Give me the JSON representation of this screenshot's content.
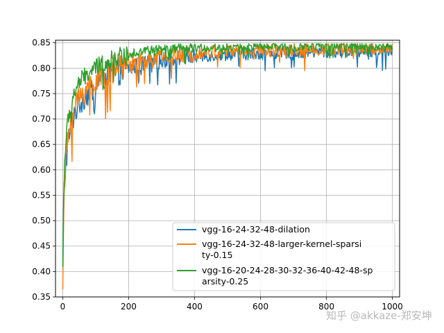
{
  "chart_data": {
    "type": "line",
    "title": "",
    "xlabel": "",
    "ylabel": "",
    "xlim": [
      -22,
      1022
    ],
    "ylim": [
      0.35,
      0.855
    ],
    "x_ticks": [
      0,
      200,
      400,
      600,
      800,
      1000
    ],
    "x_tick_labels": [
      "0",
      "200",
      "400",
      "600",
      "800",
      "1000"
    ],
    "y_ticks": [
      0.35,
      0.4,
      0.45,
      0.5,
      0.55,
      0.6,
      0.65,
      0.7,
      0.75,
      0.8,
      0.85
    ],
    "y_tick_labels": [
      "0.35",
      "0.40",
      "0.45",
      "0.50",
      "0.55",
      "0.60",
      "0.65",
      "0.70",
      "0.75",
      "0.80",
      "0.85"
    ],
    "grid": true,
    "legend_position": "lower-right",
    "series": [
      {
        "name": "vgg-16-24-32-48-dilation",
        "color": "#1f77b4",
        "x": [
          0,
          3,
          6,
          10,
          15,
          20,
          25,
          30,
          40,
          50,
          60,
          70,
          80,
          90,
          100,
          120,
          140,
          160,
          180,
          200,
          250,
          300,
          350,
          400,
          450,
          500,
          600,
          700,
          800,
          900,
          1000
        ],
        "y": [
          0.42,
          0.55,
          0.58,
          0.62,
          0.65,
          0.67,
          0.68,
          0.7,
          0.72,
          0.73,
          0.74,
          0.75,
          0.75,
          0.76,
          0.77,
          0.78,
          0.785,
          0.79,
          0.795,
          0.8,
          0.81,
          0.815,
          0.82,
          0.822,
          0.825,
          0.827,
          0.829,
          0.831,
          0.832,
          0.833,
          0.834
        ]
      },
      {
        "name": "vgg-16-24-32-48-larger-kernel-sparsity-0.15",
        "color": "#ff7f0e",
        "x": [
          0,
          3,
          6,
          10,
          15,
          20,
          25,
          30,
          40,
          50,
          60,
          70,
          80,
          90,
          100,
          120,
          140,
          160,
          180,
          200,
          250,
          300,
          350,
          400,
          450,
          500,
          600,
          700,
          800,
          900,
          1000
        ],
        "y": [
          0.38,
          0.5,
          0.58,
          0.63,
          0.66,
          0.68,
          0.7,
          0.71,
          0.73,
          0.74,
          0.75,
          0.76,
          0.765,
          0.77,
          0.775,
          0.785,
          0.79,
          0.8,
          0.805,
          0.81,
          0.815,
          0.82,
          0.825,
          0.83,
          0.832,
          0.834,
          0.835,
          0.836,
          0.837,
          0.838,
          0.838
        ]
      },
      {
        "name": "vgg-16-20-24-28-30-32-36-40-42-48-sparsity-0.25",
        "color": "#2ca02c",
        "x": [
          0,
          3,
          6,
          10,
          15,
          20,
          25,
          30,
          40,
          50,
          60,
          70,
          80,
          90,
          100,
          120,
          140,
          160,
          180,
          200,
          250,
          300,
          350,
          400,
          450,
          500,
          600,
          700,
          800,
          900,
          1000
        ],
        "y": [
          0.41,
          0.56,
          0.62,
          0.66,
          0.69,
          0.71,
          0.725,
          0.74,
          0.76,
          0.77,
          0.78,
          0.785,
          0.79,
          0.795,
          0.8,
          0.81,
          0.815,
          0.82,
          0.825,
          0.83,
          0.834,
          0.836,
          0.838,
          0.839,
          0.84,
          0.841,
          0.842,
          0.842,
          0.843,
          0.843,
          0.843
        ]
      }
    ],
    "legend_lines": [
      [
        "vgg-16-24-32-48-dilation"
      ],
      [
        "vgg-16-24-32-48-larger-kernel-sparsi",
        "ty-0.15"
      ],
      [
        "vgg-16-20-24-28-30-32-36-40-42-48-sp",
        "arsity-0.25"
      ]
    ]
  },
  "watermark": "知乎 @akkaze-郑安坤"
}
